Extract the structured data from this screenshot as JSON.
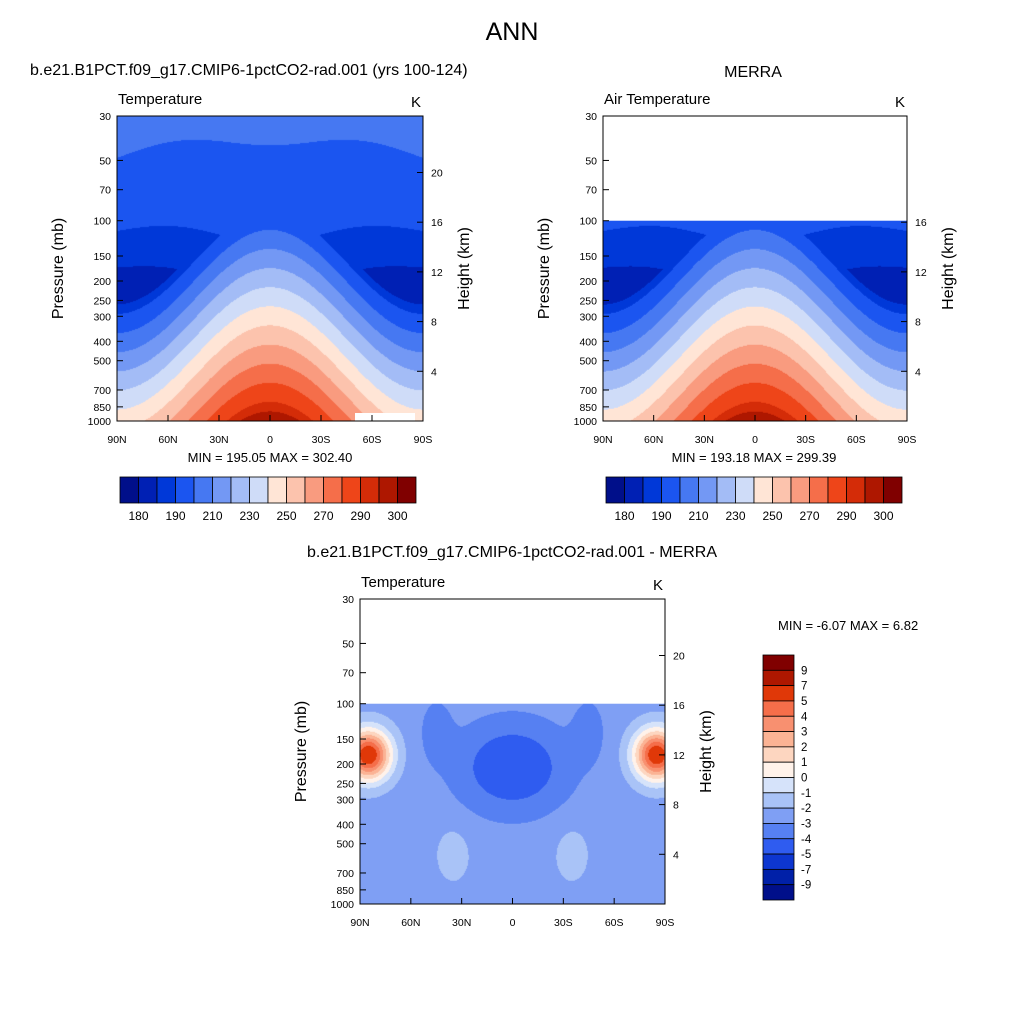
{
  "title": "ANN",
  "chart_data": [
    {
      "type": "heatmap",
      "title": "b.e21.B1PCT.f09_g17.CMIP6-1pctCO2-rad.001 (yrs 100-124)",
      "subtitle_left": "Temperature",
      "subtitle_right": "K",
      "ylabel": "Pressure (mb)",
      "ylabel_right": "Height (km)",
      "x_ticks": [
        "90N",
        "60N",
        "30N",
        "0",
        "30S",
        "60S",
        "90S"
      ],
      "x_values": [
        90,
        60,
        30,
        0,
        -30,
        -60,
        -90
      ],
      "y_ticks": [
        "30",
        "50",
        "70",
        "100",
        "150",
        "200",
        "250",
        "300",
        "400",
        "500",
        "700",
        "850",
        "1000"
      ],
      "y_values": [
        30,
        50,
        70,
        100,
        150,
        200,
        250,
        300,
        400,
        500,
        700,
        850,
        1000
      ],
      "y_right_ticks": [
        "20",
        "16",
        "12",
        "8",
        "4"
      ],
      "y_right_values": [
        20,
        16,
        12,
        8,
        4
      ],
      "ylim": [
        1000,
        30
      ],
      "xlim": [
        90,
        -90
      ],
      "y_scale": "log",
      "min_label": "MIN = 195.05  MAX = 302.40",
      "min": 195.05,
      "max": 302.4,
      "colorbar_orientation": "horizontal",
      "colorbar_labels": [
        "180",
        "190",
        "210",
        "230",
        "250",
        "270",
        "290",
        "300"
      ],
      "colorbar_colors": [
        "#000f8a",
        "#0020b4",
        "#0038d8",
        "#1b55f0",
        "#4678f2",
        "#7398f4",
        "#a3bcf6",
        "#cfdcf8",
        "#ffe5d6",
        "#fcc3ad",
        "#f99b7f",
        "#f56e4a",
        "#ee4519",
        "#d42c08",
        "#ae1700",
        "#800000"
      ]
    },
    {
      "type": "heatmap",
      "title": "MERRA",
      "subtitle_left": "Air Temperature",
      "subtitle_right": "K",
      "ylabel": "Pressure (mb)",
      "ylabel_right": "Height (km)",
      "x_ticks": [
        "90N",
        "60N",
        "30N",
        "0",
        "30S",
        "60S",
        "90S"
      ],
      "x_values": [
        90,
        60,
        30,
        0,
        -30,
        -60,
        -90
      ],
      "y_ticks": [
        "30",
        "50",
        "70",
        "100",
        "150",
        "200",
        "250",
        "300",
        "400",
        "500",
        "700",
        "850",
        "1000"
      ],
      "y_values": [
        30,
        50,
        70,
        100,
        150,
        200,
        250,
        300,
        400,
        500,
        700,
        850,
        1000
      ],
      "y_right_ticks": [
        "16",
        "12",
        "8",
        "4"
      ],
      "y_right_values": [
        16,
        12,
        8,
        4
      ],
      "ylim": [
        1000,
        30
      ],
      "xlim": [
        90,
        -90
      ],
      "y_scale": "log",
      "data_top_pressure": 100,
      "min_label": "MIN = 193.18  MAX = 299.39",
      "min": 193.18,
      "max": 299.39,
      "colorbar_orientation": "horizontal",
      "colorbar_labels": [
        "180",
        "190",
        "210",
        "230",
        "250",
        "270",
        "290",
        "300"
      ],
      "colorbar_colors": [
        "#000f8a",
        "#0020b4",
        "#0038d8",
        "#1b55f0",
        "#4678f2",
        "#7398f4",
        "#a3bcf6",
        "#cfdcf8",
        "#ffe5d6",
        "#fcc3ad",
        "#f99b7f",
        "#f56e4a",
        "#ee4519",
        "#d42c08",
        "#ae1700",
        "#800000"
      ]
    },
    {
      "type": "heatmap",
      "title": "b.e21.B1PCT.f09_g17.CMIP6-1pctCO2-rad.001 - MERRA",
      "subtitle_left": "Temperature",
      "subtitle_right": "K",
      "ylabel": "Pressure (mb)",
      "ylabel_right": "Height (km)",
      "x_ticks": [
        "90N",
        "60N",
        "30N",
        "0",
        "30S",
        "60S",
        "90S"
      ],
      "x_values": [
        90,
        60,
        30,
        0,
        -30,
        -60,
        -90
      ],
      "y_ticks": [
        "30",
        "50",
        "70",
        "100",
        "150",
        "200",
        "250",
        "300",
        "400",
        "500",
        "700",
        "850",
        "1000"
      ],
      "y_values": [
        30,
        50,
        70,
        100,
        150,
        200,
        250,
        300,
        400,
        500,
        700,
        850,
        1000
      ],
      "y_right_ticks": [
        "20",
        "16",
        "12",
        "8",
        "4"
      ],
      "y_right_values": [
        20,
        16,
        12,
        8,
        4
      ],
      "ylim": [
        1000,
        30
      ],
      "xlim": [
        90,
        -90
      ],
      "y_scale": "log",
      "data_top_pressure": 100,
      "min_label": "MIN =  -6.07  MAX =   6.82",
      "min": -6.07,
      "max": 6.82,
      "colorbar_orientation": "vertical",
      "colorbar_labels": [
        "9",
        "7",
        "5",
        "4",
        "3",
        "2",
        "1",
        "0",
        "-1",
        "-2",
        "-3",
        "-4",
        "-5",
        "-7",
        "-9"
      ],
      "colorbar_colors": [
        "#800000",
        "#ae1700",
        "#e03808",
        "#f56e4a",
        "#f89070",
        "#fbb394",
        "#fdd6c0",
        "#fff2ea",
        "#d6e3fa",
        "#a9c3f7",
        "#7f9ff4",
        "#5680f2",
        "#2f5cf0",
        "#0d36d0",
        "#0020a8",
        "#000f8a"
      ]
    }
  ]
}
